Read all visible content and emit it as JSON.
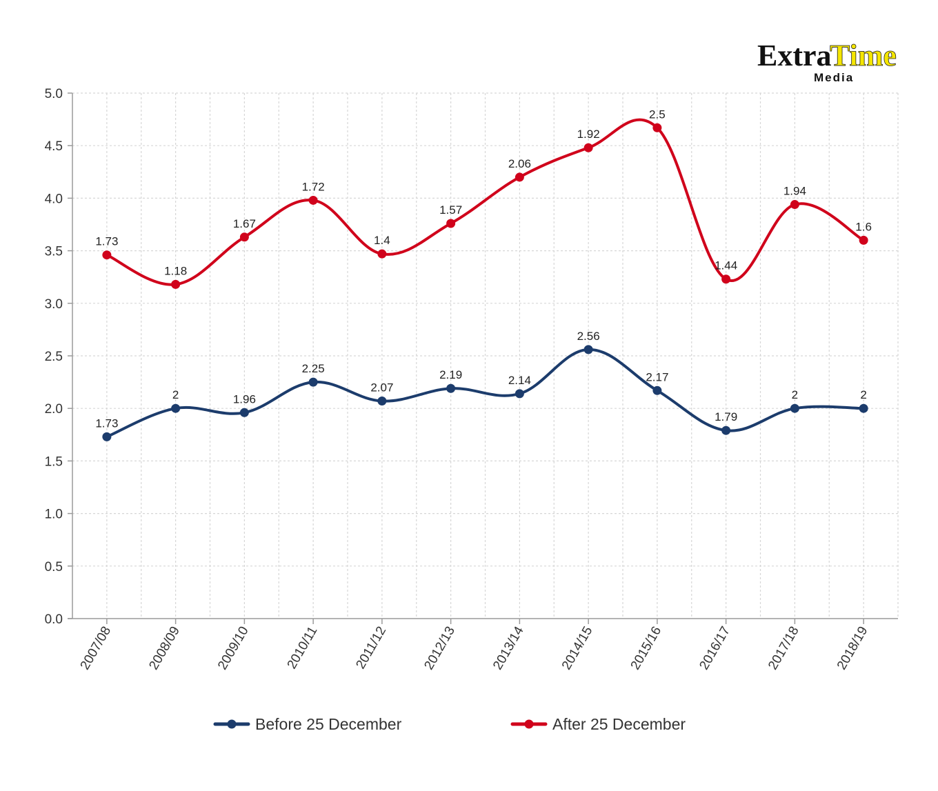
{
  "logo": {
    "part1": "Extra",
    "part2": "Time",
    "sub": "Media"
  },
  "legend": {
    "placement": "bottom"
  },
  "chart_data": {
    "type": "line",
    "smooth": true,
    "grid": true,
    "categories": [
      "2007/08",
      "2008/09",
      "2009/10",
      "2010/11",
      "2011/12",
      "2012/13",
      "2013/14",
      "2014/15",
      "2015/16",
      "2016/17",
      "2017/18",
      "2018/19"
    ],
    "ylim": [
      0,
      5
    ],
    "yticks": [
      "0.0",
      "0.5",
      "1.0",
      "1.5",
      "2.0",
      "2.5",
      "3.0",
      "3.5",
      "4.0",
      "4.5",
      "5.0"
    ],
    "series": [
      {
        "name": "Before 25 December",
        "color": "#1c3c6c",
        "values": [
          1.73,
          2.0,
          1.96,
          2.25,
          2.07,
          2.19,
          2.14,
          2.56,
          2.17,
          1.79,
          2.0,
          2.0
        ],
        "labels": [
          "1.73",
          "2",
          "1.96",
          "2.25",
          "2.07",
          "2.19",
          "2.14",
          "2.56",
          "2.17",
          "1.79",
          "2",
          "2"
        ]
      },
      {
        "name": "After 25 December",
        "color": "#d0021b",
        "values": [
          3.46,
          3.18,
          3.63,
          3.98,
          3.47,
          3.76,
          4.2,
          4.48,
          4.67,
          3.23,
          3.94,
          3.6
        ],
        "labels": [
          "1.73",
          "1.18",
          "1.67",
          "1.72",
          "1.4",
          "1.57",
          "2.06",
          "1.92",
          "2.5",
          "1.44",
          "1.94",
          "1.6"
        ]
      }
    ]
  }
}
